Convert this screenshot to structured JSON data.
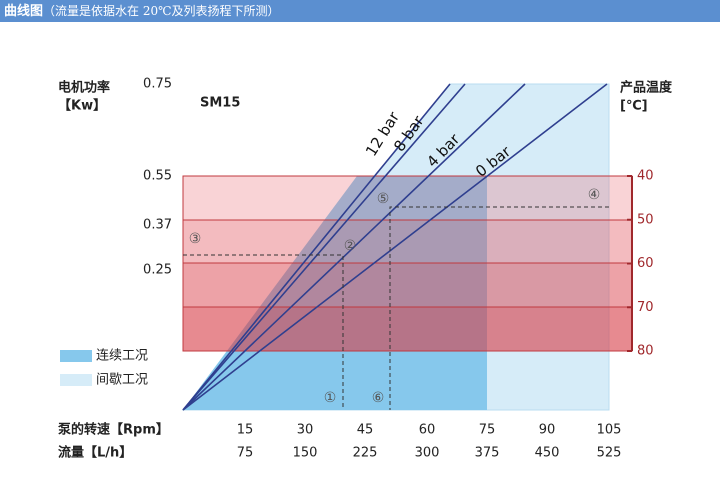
{
  "header": {
    "title": "曲线图",
    "note": "（流量是依据水在 20℃及列表扬程下所测）"
  },
  "model": "SM15",
  "left_axis": {
    "title": [
      "电机功率",
      "【Kw】"
    ],
    "ticks": [
      "0.75",
      "0.55",
      "0.37",
      "0.25"
    ]
  },
  "right_axis": {
    "title": [
      "产品温度",
      "[℃]"
    ],
    "ticks": [
      "40",
      "50",
      "60",
      "70",
      "80"
    ]
  },
  "lines": [
    "12 bar",
    "8 bar",
    "4 bar",
    "0 bar"
  ],
  "markers": [
    "①",
    "②",
    "③",
    "④",
    "⑤",
    "⑥"
  ],
  "legend": [
    "连续工况",
    "间歇工况"
  ],
  "rows": [
    {
      "label": "泵的转速【Rpm】",
      "values": [
        "15",
        "30",
        "45",
        "60",
        "75",
        "90",
        "105"
      ]
    },
    {
      "label": "流量【L/h】",
      "values": [
        "75",
        "150",
        "225",
        "300",
        "375",
        "450",
        "525"
      ]
    }
  ]
}
